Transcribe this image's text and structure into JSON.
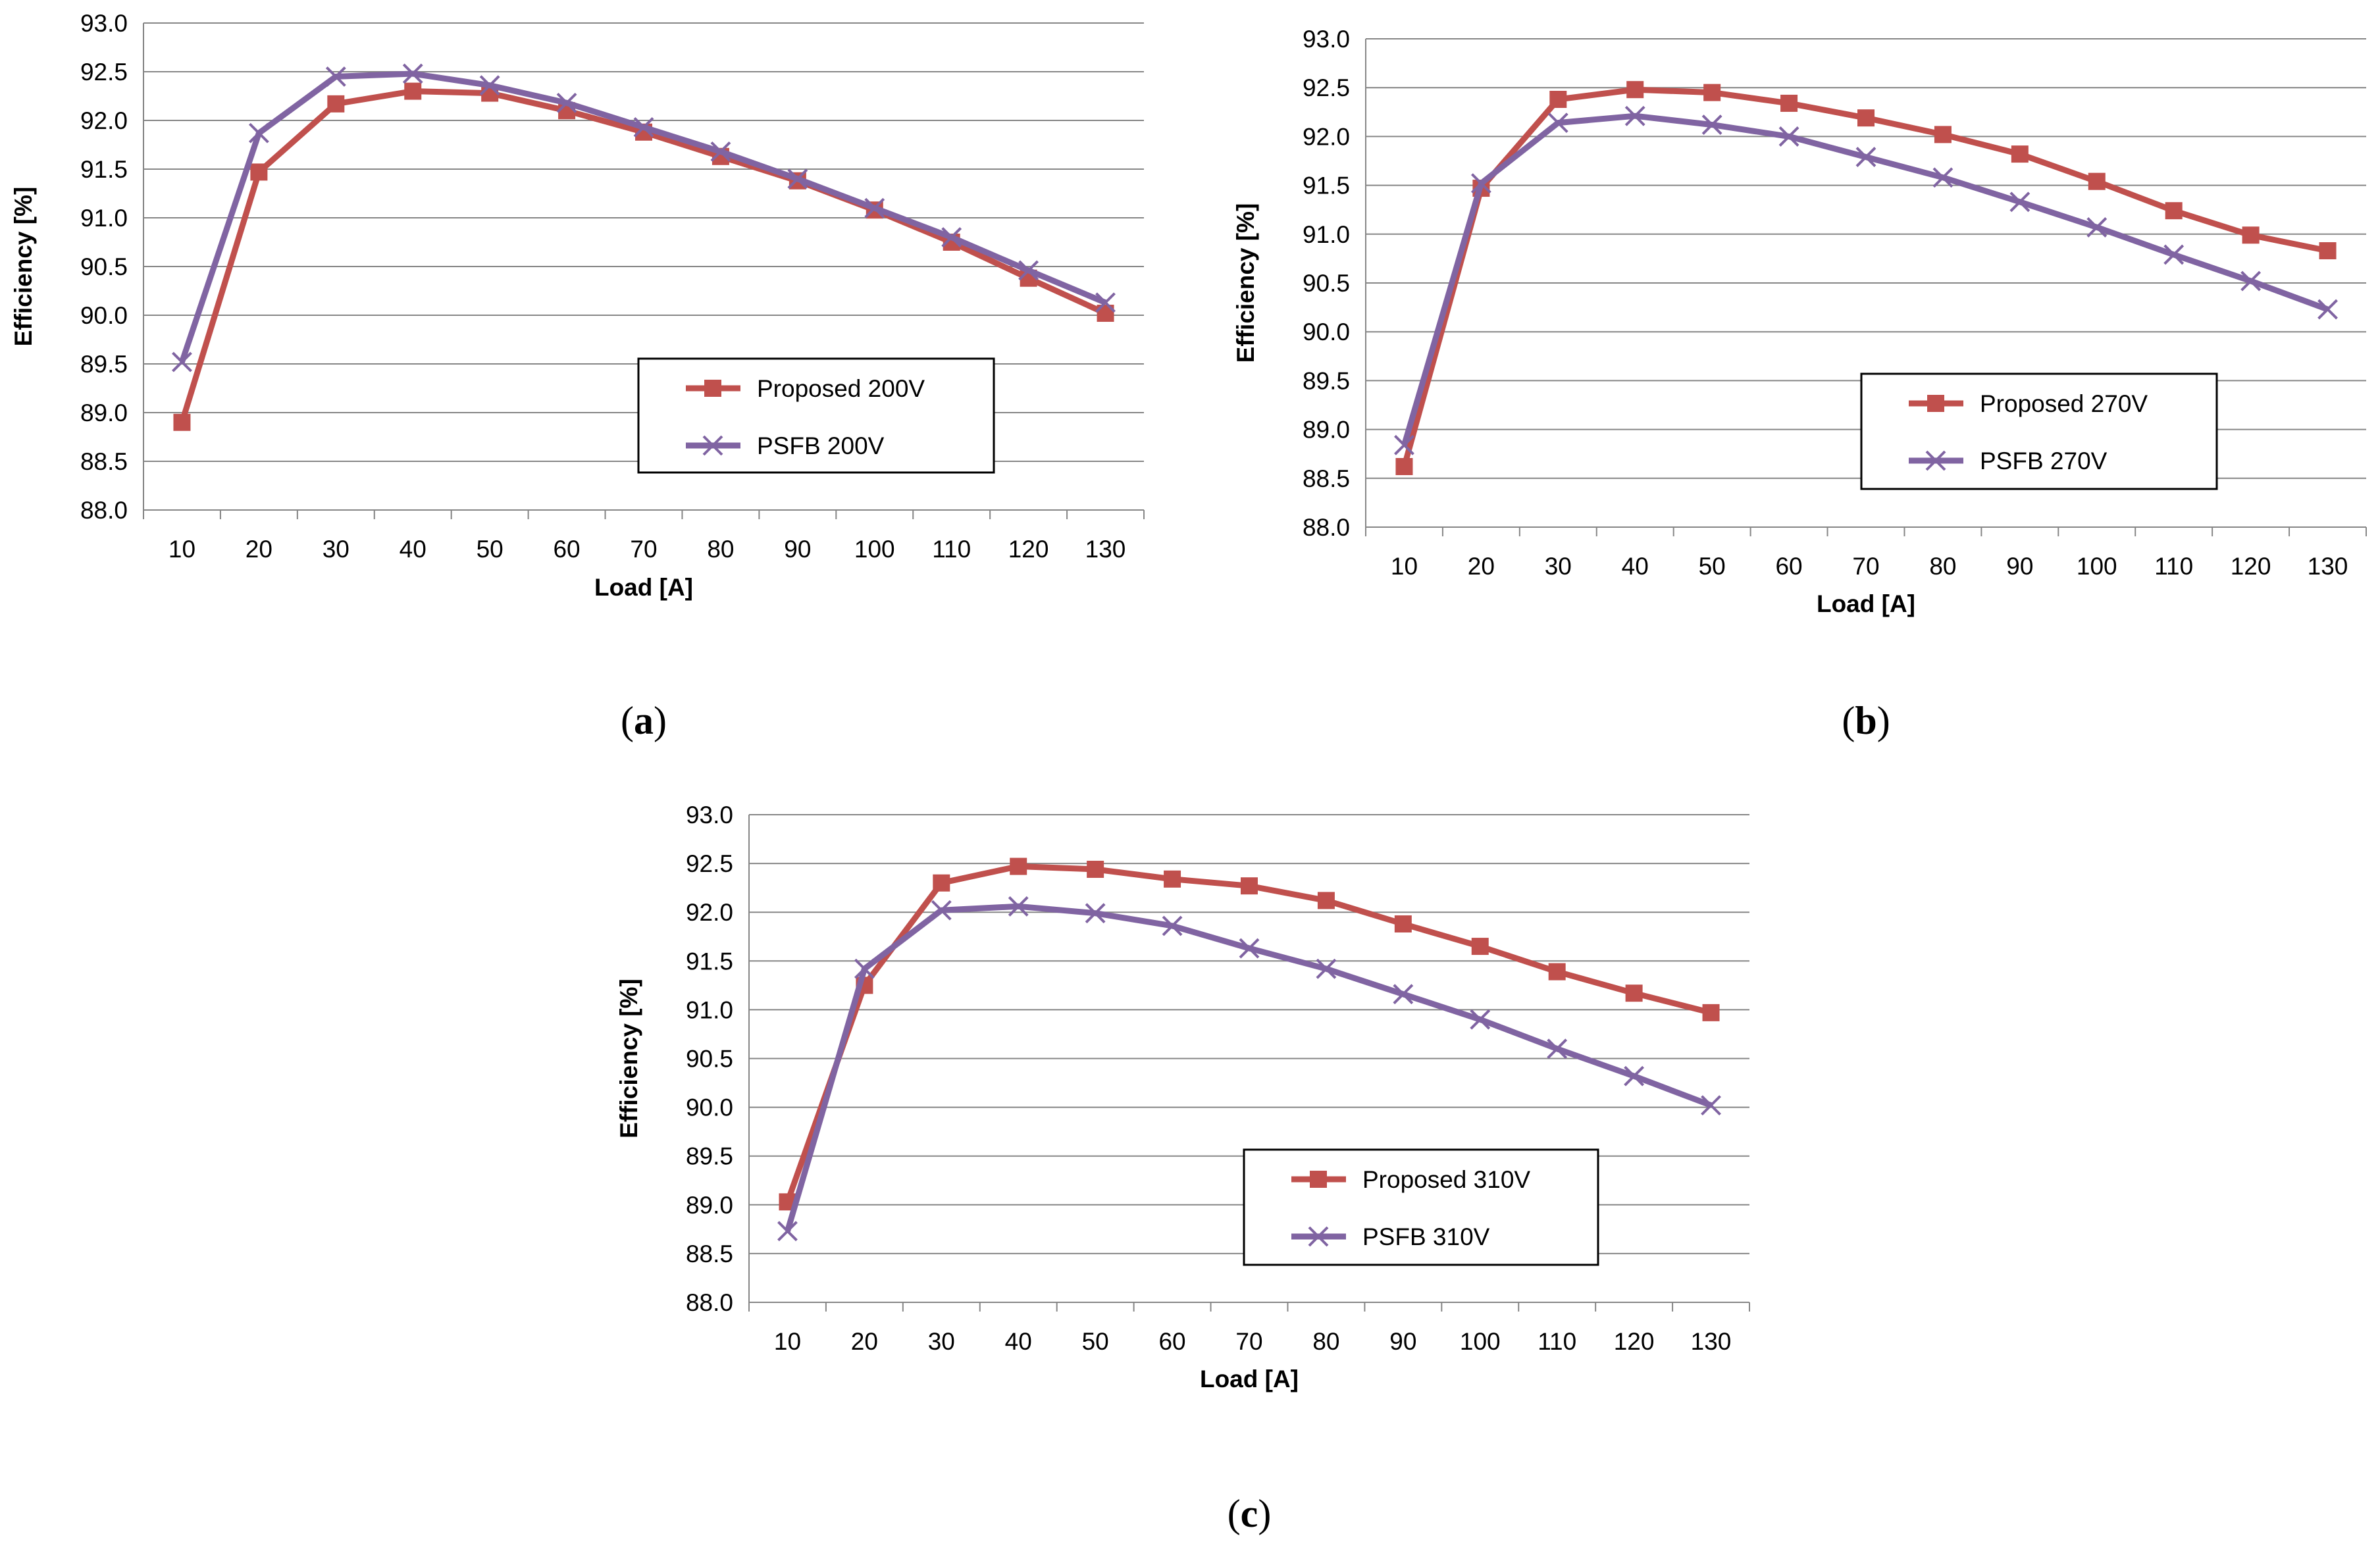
{
  "colors": {
    "proposed": "#C0504D",
    "psfb": "#8064A2",
    "grid": "#868686",
    "axis": "#868686"
  },
  "chart_data": [
    {
      "type": "line",
      "panel": "(a)",
      "panel_letter": "a",
      "xlabel": "Load [A]",
      "ylabel": "Efficiency [%]",
      "categories": [
        "10",
        "20",
        "30",
        "40",
        "50",
        "60",
        "70",
        "80",
        "90",
        "100",
        "110",
        "120",
        "130"
      ],
      "yticks": [
        "88.0",
        "88.5",
        "89.0",
        "89.5",
        "90.0",
        "90.5",
        "91.0",
        "91.5",
        "92.0",
        "92.5",
        "93.0"
      ],
      "ylim": [
        88.0,
        93.0
      ],
      "legend": "inside-lower-right",
      "series": [
        {
          "name": "Proposed 200V",
          "marker": "square",
          "values": [
            88.9,
            91.47,
            92.17,
            92.3,
            92.28,
            92.1,
            91.88,
            91.63,
            91.38,
            91.08,
            90.75,
            90.38,
            90.02
          ]
        },
        {
          "name": "PSFB 200V",
          "marker": "x",
          "values": [
            89.52,
            91.87,
            92.45,
            92.48,
            92.36,
            92.18,
            91.93,
            91.68,
            91.4,
            91.1,
            90.8,
            90.46,
            90.13
          ]
        }
      ]
    },
    {
      "type": "line",
      "panel": "(b)",
      "panel_letter": "b",
      "xlabel": "Load [A]",
      "ylabel": "Efficiency [%]",
      "categories": [
        "10",
        "20",
        "30",
        "40",
        "50",
        "60",
        "70",
        "80",
        "90",
        "100",
        "110",
        "120",
        "130"
      ],
      "yticks": [
        "88.0",
        "88.5",
        "89.0",
        "89.5",
        "90.0",
        "90.5",
        "91.0",
        "91.5",
        "92.0",
        "92.5",
        "93.0"
      ],
      "ylim": [
        88.0,
        93.0
      ],
      "legend": "inside-lower-right",
      "series": [
        {
          "name": "Proposed 270V",
          "marker": "square",
          "values": [
            88.62,
            91.47,
            92.38,
            92.48,
            92.45,
            92.34,
            92.19,
            92.02,
            91.82,
            91.54,
            91.24,
            90.99,
            90.83
          ]
        },
        {
          "name": "PSFB 270V",
          "marker": "x",
          "values": [
            88.84,
            91.52,
            92.14,
            92.21,
            92.12,
            92.0,
            91.79,
            91.58,
            91.33,
            91.07,
            90.79,
            90.52,
            90.23
          ]
        }
      ]
    },
    {
      "type": "line",
      "panel": "(c)",
      "panel_letter": "c",
      "xlabel": "Load [A]",
      "ylabel": "Efficiency [%]",
      "categories": [
        "10",
        "20",
        "30",
        "40",
        "50",
        "60",
        "70",
        "80",
        "90",
        "100",
        "110",
        "120",
        "130"
      ],
      "yticks": [
        "88.0",
        "88.5",
        "89.0",
        "89.5",
        "90.0",
        "90.5",
        "91.0",
        "91.5",
        "92.0",
        "92.5",
        "93.0"
      ],
      "ylim": [
        88.0,
        93.0
      ],
      "legend": "inside-lower-right",
      "series": [
        {
          "name": "Proposed 310V",
          "marker": "square",
          "values": [
            89.03,
            91.25,
            92.3,
            92.47,
            92.44,
            92.34,
            92.27,
            92.12,
            91.88,
            91.65,
            91.39,
            91.17,
            90.97
          ]
        },
        {
          "name": "PSFB 310V",
          "marker": "x",
          "values": [
            88.73,
            91.42,
            92.02,
            92.06,
            91.99,
            91.86,
            91.63,
            91.42,
            91.16,
            90.9,
            90.6,
            90.32,
            90.02
          ]
        }
      ]
    }
  ]
}
